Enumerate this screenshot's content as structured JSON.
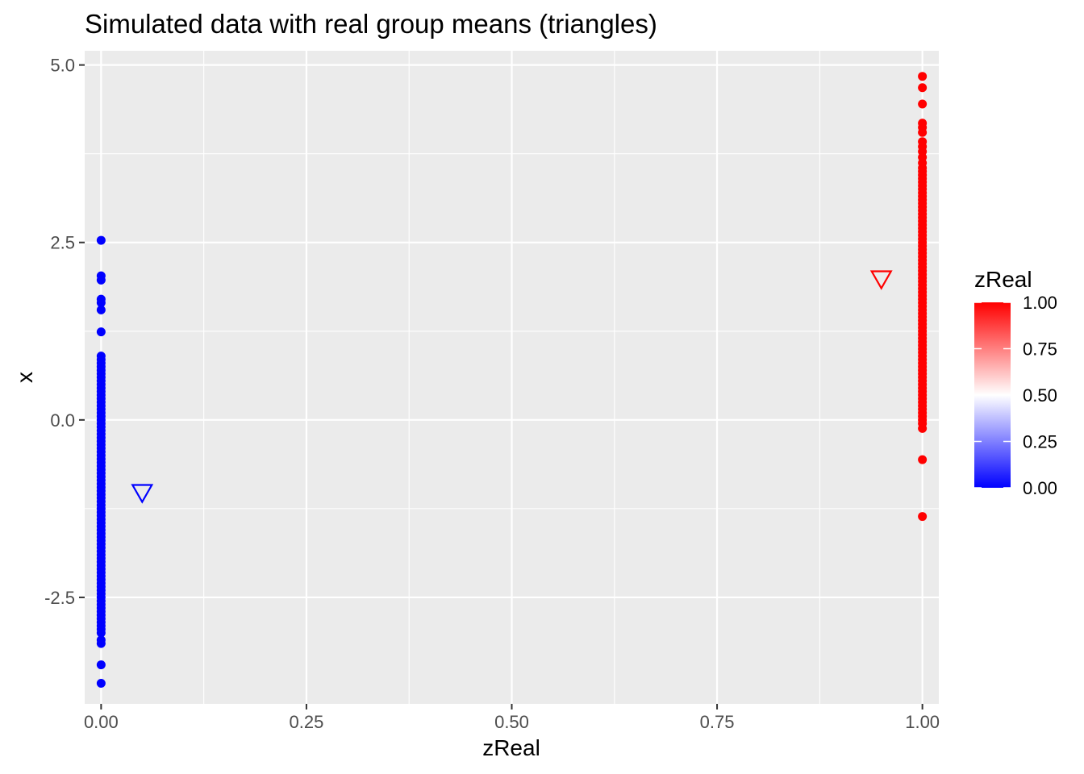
{
  "chart_data": {
    "type": "scatter",
    "title": "Simulated data with real group means (triangles)",
    "xlabel": "zReal",
    "ylabel": "x",
    "xlim": [
      -0.02,
      1.02
    ],
    "ylim": [
      -4.0,
      5.2
    ],
    "x_ticks": [
      0.0,
      0.25,
      0.5,
      0.75,
      1.0
    ],
    "x_tick_labels": [
      "0.00",
      "0.25",
      "0.50",
      "0.75",
      "1.00"
    ],
    "y_ticks": [
      -2.5,
      0.0,
      2.5,
      5.0
    ],
    "y_tick_labels": [
      "-2.5",
      "0.0",
      "2.5",
      "5.0"
    ],
    "grid": true,
    "legend": {
      "title": "zReal",
      "type": "colorbar",
      "placement": "right",
      "low_color": "#0000ff",
      "mid_color": "#ffffff",
      "high_color": "#ff0000",
      "breaks": [
        0.0,
        0.25,
        0.5,
        0.75,
        1.0
      ],
      "break_labels": [
        "0.00",
        "0.25",
        "0.50",
        "0.75",
        "1.00"
      ]
    },
    "series": [
      {
        "zReal": 0,
        "color": "#0000ff",
        "x": 0,
        "y": [
          2.53,
          2.03,
          1.97,
          1.7,
          1.65,
          1.55,
          1.24,
          0.9,
          0.85,
          0.8,
          0.75,
          0.7,
          0.65,
          0.6,
          0.55,
          0.5,
          0.45,
          0.4,
          0.35,
          0.3,
          0.25,
          0.2,
          0.15,
          0.1,
          0.05,
          0.0,
          -0.05,
          -0.1,
          -0.15,
          -0.2,
          -0.25,
          -0.3,
          -0.35,
          -0.4,
          -0.45,
          -0.5,
          -0.55,
          -0.6,
          -0.65,
          -0.7,
          -0.75,
          -0.8,
          -0.85,
          -0.9,
          -0.95,
          -1.0,
          -1.05,
          -1.1,
          -1.15,
          -1.2,
          -1.25,
          -1.3,
          -1.35,
          -1.4,
          -1.45,
          -1.5,
          -1.55,
          -1.6,
          -1.65,
          -1.7,
          -1.75,
          -1.8,
          -1.85,
          -1.9,
          -1.95,
          -2.0,
          -2.05,
          -2.1,
          -2.15,
          -2.2,
          -2.25,
          -2.3,
          -2.35,
          -2.4,
          -2.45,
          -2.5,
          -2.55,
          -2.6,
          -2.65,
          -2.7,
          -2.75,
          -2.8,
          -2.85,
          -2.9,
          -2.95,
          -3.0,
          -3.1,
          -3.15,
          -3.45,
          -3.71
        ]
      },
      {
        "zReal": 1,
        "color": "#ff0000",
        "x": 1,
        "y": [
          4.84,
          4.68,
          4.45,
          4.18,
          4.12,
          4.05,
          3.92,
          3.85,
          3.78,
          3.7,
          3.62,
          3.55,
          3.5,
          3.45,
          3.4,
          3.35,
          3.3,
          3.25,
          3.2,
          3.15,
          3.1,
          3.05,
          3.0,
          2.95,
          2.9,
          2.85,
          2.8,
          2.75,
          2.7,
          2.65,
          2.6,
          2.55,
          2.5,
          2.45,
          2.4,
          2.35,
          2.3,
          2.25,
          2.2,
          2.15,
          2.1,
          2.05,
          2.0,
          1.95,
          1.9,
          1.85,
          1.8,
          1.75,
          1.7,
          1.65,
          1.6,
          1.55,
          1.5,
          1.45,
          1.4,
          1.35,
          1.3,
          1.25,
          1.2,
          1.15,
          1.1,
          1.05,
          1.0,
          0.95,
          0.9,
          0.85,
          0.8,
          0.75,
          0.7,
          0.65,
          0.6,
          0.55,
          0.5,
          0.45,
          0.4,
          0.35,
          0.3,
          0.25,
          0.2,
          0.15,
          0.1,
          0.05,
          0.0,
          -0.05,
          -0.12,
          -0.56,
          -1.36
        ]
      }
    ],
    "group_means": [
      {
        "x": 0.05,
        "y": -1.03,
        "color": "#0000ff",
        "shape": "open-down-triangle"
      },
      {
        "x": 0.95,
        "y": 1.98,
        "color": "#ff0000",
        "shape": "open-down-triangle"
      }
    ]
  }
}
